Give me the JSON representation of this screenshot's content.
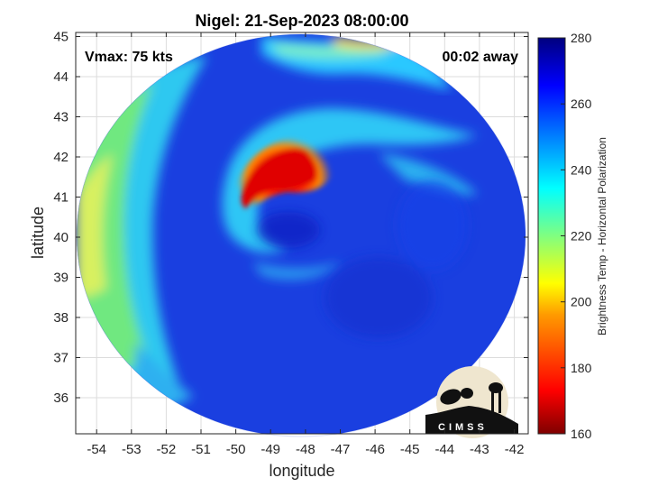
{
  "chart_data": {
    "type": "heatmap",
    "title": "Nigel: 21-Sep-2023 08:00:00",
    "xlabel": "longitude",
    "ylabel": "latitude",
    "xlim": [
      -54.6,
      -41.6
    ],
    "ylim": [
      35.1,
      45.1
    ],
    "x_ticks": [
      -54,
      -53,
      -52,
      -51,
      -50,
      -49,
      -48,
      -47,
      -46,
      -45,
      -44,
      -43,
      -42
    ],
    "y_ticks": [
      36,
      37,
      38,
      39,
      40,
      41,
      42,
      43,
      44,
      45
    ],
    "grid": true,
    "annotations": {
      "vmax": "Vmax: 75 kts",
      "time_offset": "00:02 away"
    },
    "colorbar": {
      "label": "Brightness Temp - Horizontal Polarization",
      "range": [
        160,
        280
      ],
      "ticks": [
        160,
        180,
        200,
        220,
        240,
        260,
        280
      ],
      "colormap": "jet"
    },
    "swath": {
      "center_lon": -48.0,
      "center_lat": 40.1,
      "radius_deg_lat": 5.0
    },
    "storm_center": {
      "lon": -48.6,
      "lat": 40.0
    },
    "features": [
      {
        "name": "eyewall-warm-arc",
        "lon": -48.5,
        "lat": 41.5,
        "brightness_temp": 175
      },
      {
        "name": "outer-band-north",
        "lon": -47.5,
        "lat": 44.8,
        "brightness_temp": 215
      },
      {
        "name": "background-ocean",
        "brightness_temp": 260
      }
    ],
    "logo": "CIMSS"
  }
}
